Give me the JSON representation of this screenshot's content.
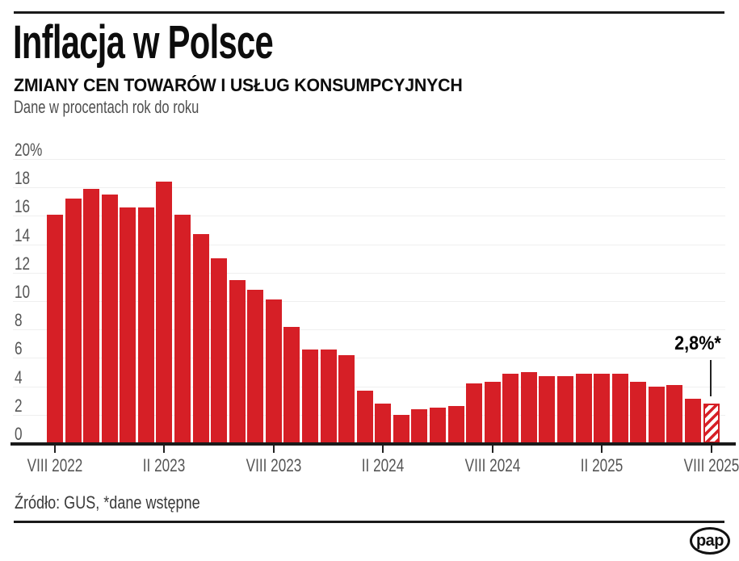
{
  "header": {
    "title": "Inflacja w Polsce",
    "subtitle": "ZMIANY CEN TOWARÓW I USŁUG KONSUMPCYJNYCH",
    "note": "Dane w procentach rok do roku"
  },
  "annotation": {
    "label": "2,8%*"
  },
  "footer": {
    "source": "Źródło: GUS, *dane wstępne",
    "logo": "pap"
  },
  "colors": {
    "bar": "#d61f26",
    "axis": "#1a1a1a",
    "grid": "#efefef",
    "muted_text": "#555555"
  },
  "chart_data": {
    "type": "bar",
    "title": "Inflacja w Polsce",
    "subtitle": "ZMIANY CEN TOWARÓW I USŁUG KONSUMPCYJNYCH",
    "ylabel": "Dane w procentach rok do roku",
    "xlabel": "",
    "ylim": [
      0,
      20
    ],
    "grid": true,
    "legend": null,
    "categories": [
      "VIII 2022",
      "IX 2022",
      "X 2022",
      "XI 2022",
      "XII 2022",
      "I 2023",
      "II 2023",
      "III 2023",
      "IV 2023",
      "V 2023",
      "VI 2023",
      "VII 2023",
      "VIII 2023",
      "IX 2023",
      "X 2023",
      "XI 2023",
      "XII 2023",
      "I 2024",
      "II 2024",
      "III 2024",
      "IV 2024",
      "V 2024",
      "VI 2024",
      "VII 2024",
      "VIII 2024",
      "IX 2024",
      "X 2024",
      "XI 2024",
      "XII 2024",
      "I 2025",
      "II 2025",
      "III 2025",
      "IV 2025",
      "V 2025",
      "VI 2025",
      "VII 2025",
      "VIII 2025"
    ],
    "values": [
      16.1,
      17.2,
      17.9,
      17.5,
      16.6,
      16.6,
      18.4,
      16.1,
      14.7,
      13.0,
      11.5,
      10.8,
      10.1,
      8.2,
      6.6,
      6.6,
      6.2,
      3.7,
      2.8,
      2.0,
      2.4,
      2.5,
      2.6,
      4.2,
      4.3,
      4.9,
      5.0,
      4.7,
      4.7,
      4.9,
      4.9,
      4.9,
      4.3,
      4.0,
      4.1,
      3.1,
      2.8
    ],
    "x_tick_indices": [
      0,
      6,
      12,
      18,
      24,
      30,
      36
    ],
    "x_tick_labels": [
      "VIII 2022",
      "II 2023",
      "VIII 2023",
      "II 2024",
      "VIII 2024",
      "II 2025",
      "VIII 2025"
    ],
    "y_ticks": [
      {
        "value": 20,
        "label": "20%"
      },
      {
        "value": 18,
        "label": "18"
      },
      {
        "value": 16,
        "label": "16"
      },
      {
        "value": 14,
        "label": "14"
      },
      {
        "value": 12,
        "label": "12"
      },
      {
        "value": 10,
        "label": "10"
      },
      {
        "value": 8,
        "label": "8"
      },
      {
        "value": 6,
        "label": "6"
      },
      {
        "value": 4,
        "label": "4"
      },
      {
        "value": 2,
        "label": "2"
      },
      {
        "value": 0,
        "label": "0"
      }
    ],
    "highlight": {
      "index": 36,
      "style": "hatched",
      "label": "2,8%*",
      "preliminary": true
    }
  }
}
